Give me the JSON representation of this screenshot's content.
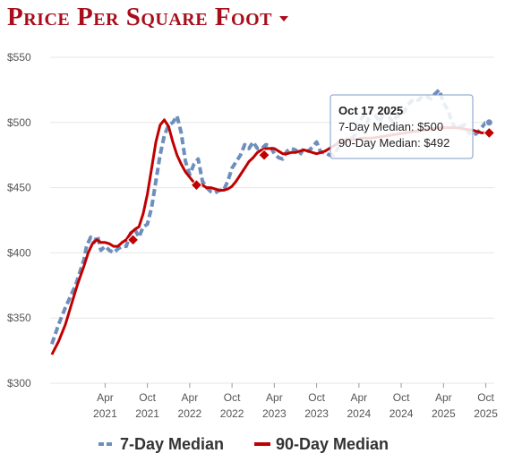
{
  "header": {
    "title": "Price Per Square Foot"
  },
  "colors": {
    "title": "#a80d1b",
    "seven_day": "#6e8fbd",
    "ninety_day": "#c00000",
    "grid": "#e6e6e6"
  },
  "chart_data": {
    "type": "line",
    "title": "Price Per Square Foot",
    "ylim": [
      300,
      550
    ],
    "y_ticks": [
      "$300",
      "$350",
      "$400",
      "$450",
      "$500",
      "$550"
    ],
    "y_tick_values": [
      300,
      350,
      400,
      450,
      500,
      550
    ],
    "x_ticks": [
      {
        "month": "Apr",
        "year": "2021",
        "t": 2021.25
      },
      {
        "month": "Oct",
        "year": "2021",
        "t": 2021.75
      },
      {
        "month": "Apr",
        "year": "2022",
        "t": 2022.25
      },
      {
        "month": "Oct",
        "year": "2022",
        "t": 2022.75
      },
      {
        "month": "Apr",
        "year": "2023",
        "t": 2023.25
      },
      {
        "month": "Oct",
        "year": "2023",
        "t": 2023.75
      },
      {
        "month": "Apr",
        "year": "2024",
        "t": 2024.25
      },
      {
        "month": "Oct",
        "year": "2024",
        "t": 2024.75
      },
      {
        "month": "Apr",
        "year": "2025",
        "t": 2025.25
      },
      {
        "month": "Oct",
        "year": "2025",
        "t": 2025.75
      }
    ],
    "xlim": [
      2020.6,
      2025.85
    ],
    "series": [
      {
        "name": "7-Day Median",
        "style": "dashed",
        "x": [
          2020.62,
          2020.7,
          2020.78,
          2020.85,
          2020.9,
          2020.95,
          2021.0,
          2021.03,
          2021.08,
          2021.12,
          2021.16,
          2021.2,
          2021.25,
          2021.3,
          2021.35,
          2021.4,
          2021.45,
          2021.5,
          2021.55,
          2021.6,
          2021.65,
          2021.7,
          2021.75,
          2021.8,
          2021.85,
          2021.9,
          2021.95,
          2022.0,
          2022.05,
          2022.1,
          2022.15,
          2022.2,
          2022.25,
          2022.3,
          2022.35,
          2022.4,
          2022.45,
          2022.5,
          2022.55,
          2022.6,
          2022.65,
          2022.7,
          2022.75,
          2022.8,
          2022.85,
          2022.9,
          2022.95,
          2023.0,
          2023.05,
          2023.1,
          2023.15,
          2023.2,
          2023.25,
          2023.3,
          2023.35,
          2023.4,
          2023.45,
          2023.5,
          2023.55,
          2023.6,
          2023.65,
          2023.7,
          2023.75,
          2023.8,
          2023.85,
          2023.9,
          2023.95,
          2024.0,
          2024.05,
          2024.1,
          2024.15,
          2024.2,
          2024.25,
          2024.3,
          2024.35,
          2024.4,
          2024.45,
          2024.5,
          2024.55,
          2024.6,
          2024.65,
          2024.7,
          2024.75,
          2024.8,
          2024.85,
          2024.9,
          2024.95,
          2025.0,
          2025.05,
          2025.1,
          2025.15,
          2025.2,
          2025.25,
          2025.3,
          2025.35,
          2025.4,
          2025.45,
          2025.5,
          2025.55,
          2025.6,
          2025.65,
          2025.7,
          2025.75,
          2025.79
        ],
        "y": [
          330,
          345,
          358,
          368,
          375,
          385,
          395,
          405,
          412,
          408,
          413,
          402,
          405,
          402,
          400,
          403,
          405,
          405,
          415,
          418,
          412,
          420,
          422,
          435,
          455,
          475,
          490,
          498,
          500,
          505,
          492,
          470,
          460,
          468,
          472,
          455,
          450,
          447,
          446,
          448,
          448,
          455,
          465,
          470,
          475,
          483,
          480,
          485,
          480,
          480,
          483,
          482,
          476,
          473,
          472,
          478,
          480,
          479,
          475,
          480,
          478,
          481,
          485,
          477,
          477,
          475,
          475,
          480,
          485,
          487,
          487,
          490,
          500,
          505,
          500,
          510,
          505,
          500,
          510,
          505,
          500,
          505,
          505,
          510,
          515,
          518,
          517,
          520,
          520,
          518,
          522,
          525,
          515,
          510,
          500,
          495,
          497,
          498,
          492,
          490,
          492,
          496,
          500,
          500
        ]
      },
      {
        "name": "90-Day Median",
        "style": "solid",
        "x": [
          2020.62,
          2020.7,
          2020.78,
          2020.85,
          2020.92,
          2021.0,
          2021.05,
          2021.1,
          2021.15,
          2021.2,
          2021.25,
          2021.3,
          2021.35,
          2021.4,
          2021.45,
          2021.5,
          2021.55,
          2021.6,
          2021.65,
          2021.7,
          2021.75,
          2021.8,
          2021.85,
          2021.9,
          2021.95,
          2022.0,
          2022.05,
          2022.1,
          2022.15,
          2022.2,
          2022.25,
          2022.3,
          2022.35,
          2022.4,
          2022.45,
          2022.5,
          2022.55,
          2022.6,
          2022.65,
          2022.7,
          2022.75,
          2022.8,
          2022.85,
          2022.9,
          2022.95,
          2023.0,
          2023.05,
          2023.1,
          2023.15,
          2023.2,
          2023.25,
          2023.3,
          2023.35,
          2023.4,
          2023.45,
          2023.5,
          2023.55,
          2023.6,
          2023.65,
          2023.7,
          2023.75,
          2023.8,
          2023.85,
          2023.9,
          2023.95,
          2024.0,
          2024.1,
          2024.2,
          2024.3,
          2024.4,
          2024.5,
          2024.6,
          2024.7,
          2024.8,
          2024.9,
          2025.0,
          2025.1,
          2025.2,
          2025.3,
          2025.4,
          2025.5,
          2025.6,
          2025.7,
          2025.79
        ],
        "y": [
          322,
          332,
          345,
          360,
          375,
          390,
          400,
          407,
          410,
          408,
          408,
          407,
          405,
          405,
          408,
          410,
          415,
          418,
          420,
          430,
          445,
          465,
          485,
          498,
          502,
          497,
          485,
          475,
          468,
          462,
          458,
          454,
          453,
          452,
          450,
          450,
          449,
          448,
          448,
          449,
          451,
          455,
          460,
          465,
          470,
          473,
          477,
          479,
          480,
          480,
          480,
          478,
          476,
          476,
          477,
          477,
          478,
          479,
          478,
          477,
          476,
          477,
          478,
          480,
          482,
          484,
          486,
          487,
          488,
          488,
          489,
          490,
          491,
          492,
          493,
          494,
          495,
          496,
          496,
          496,
          495,
          494,
          492,
          492
        ]
      }
    ],
    "markers_90": [
      {
        "t": 2021.58,
        "v": 410
      },
      {
        "t": 2022.33,
        "v": 452
      },
      {
        "t": 2023.13,
        "v": 475
      },
      {
        "t": 2025.79,
        "v": 492
      }
    ],
    "marker_7": {
      "t": 2025.79,
      "v": 500
    },
    "tooltip": {
      "title": "Oct 17 2025",
      "line1": "7-Day Median: $500",
      "line2": "90-Day Median: $492"
    },
    "legend": [
      "7-Day Median",
      "90-Day Median"
    ]
  }
}
